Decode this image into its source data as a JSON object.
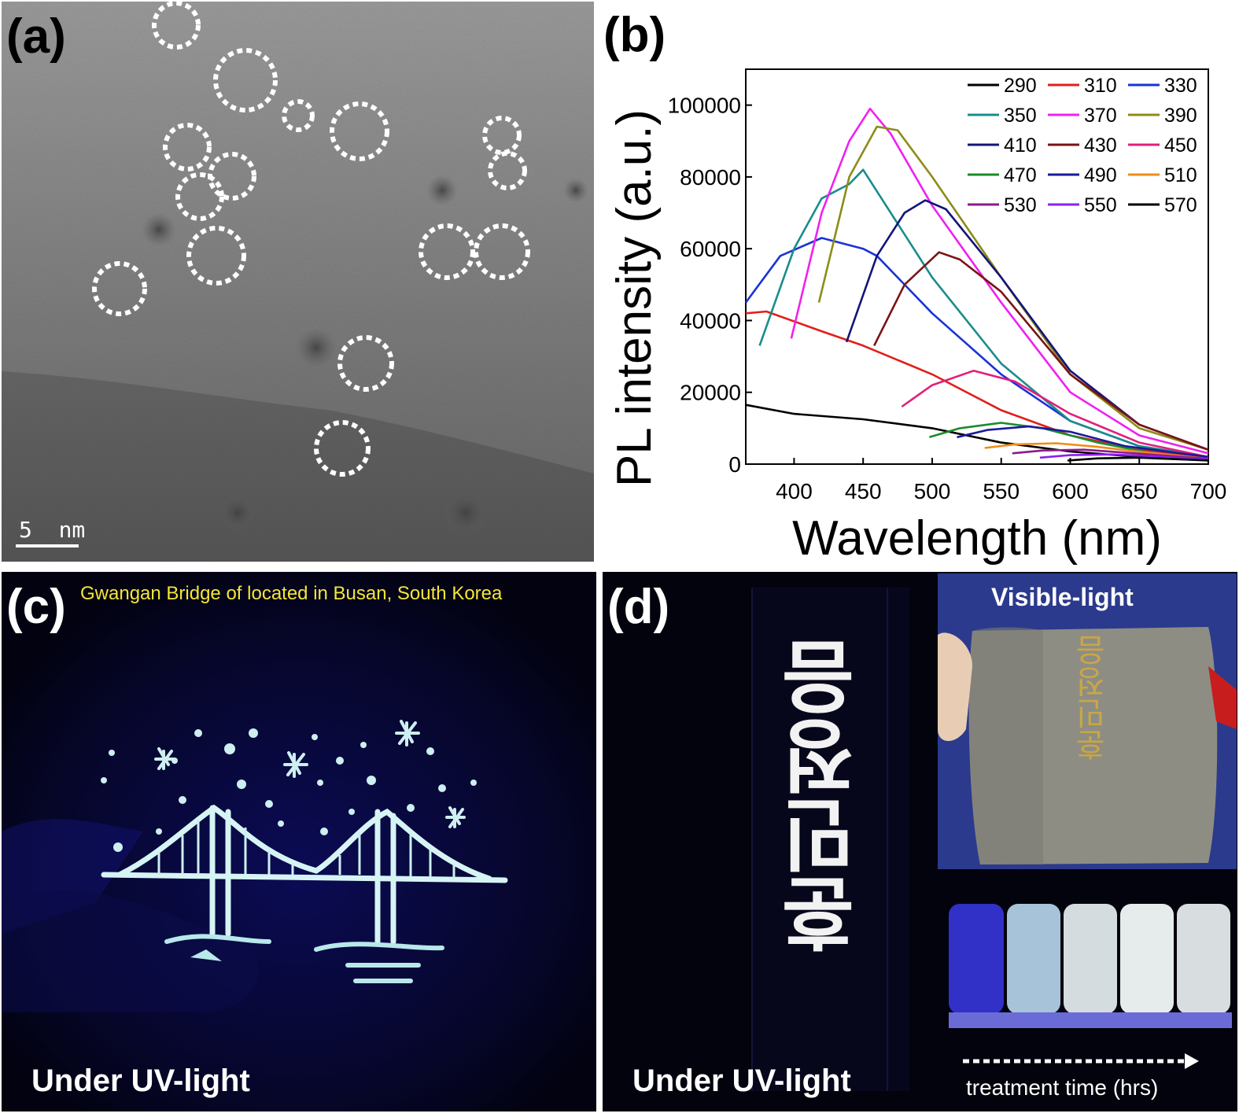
{
  "panel_a": {
    "label": "(a)",
    "scale_bar": "5  nm"
  },
  "panel_b": {
    "label": "(b)"
  },
  "panel_c": {
    "label": "(c)",
    "caption": "Gwangan Bridge of located in Busan, South Korea",
    "bottom_text": "Under UV-light"
  },
  "panel_d": {
    "label": "(d)",
    "inset_title": "Visible-light",
    "vertical_text": "훈민정음",
    "bottom_text": "Under UV-light",
    "arrow_label": "treatment time (hrs)"
  },
  "chart_data": {
    "type": "line",
    "title": "",
    "xlabel": "Wavelength (nm)",
    "ylabel": "PL intensity (a.u.)",
    "xlim": [
      365,
      700
    ],
    "ylim": [
      0,
      110000
    ],
    "xticks": [
      "400",
      "450",
      "500",
      "550",
      "600",
      "650",
      "700"
    ],
    "yticks": [
      "0",
      "20000",
      "40000",
      "60000",
      "80000",
      "100000"
    ],
    "legend_position": "top-right",
    "series": [
      {
        "name": "290",
        "color": "#000000",
        "x": [
          365,
          400,
          450,
          500,
          550,
          600,
          650,
          700
        ],
        "y": [
          16500,
          14000,
          12500,
          10000,
          6000,
          3500,
          2000,
          1200
        ]
      },
      {
        "name": "310",
        "color": "#e0201a",
        "x": [
          365,
          380,
          420,
          450,
          500,
          550,
          600,
          650,
          700
        ],
        "y": [
          42000,
          42500,
          37000,
          33000,
          25000,
          15000,
          8000,
          4000,
          2000
        ]
      },
      {
        "name": "330",
        "color": "#1a33d6",
        "x": [
          365,
          390,
          420,
          450,
          460,
          500,
          550,
          600,
          650,
          700
        ],
        "y": [
          45000,
          58000,
          63000,
          60000,
          58000,
          42000,
          25000,
          12000,
          5000,
          2000
        ]
      },
      {
        "name": "350",
        "color": "#1a8c8c",
        "x": [
          375,
          400,
          420,
          440,
          450,
          460,
          500,
          550,
          600,
          650,
          700
        ],
        "y": [
          33000,
          60000,
          74000,
          78000,
          82000,
          76000,
          52000,
          28000,
          12000,
          5000,
          2000
        ]
      },
      {
        "name": "370",
        "color": "#f020f0",
        "x": [
          398,
          420,
          440,
          455,
          470,
          500,
          550,
          600,
          650,
          700
        ],
        "y": [
          35000,
          70000,
          90000,
          99000,
          92000,
          72000,
          45000,
          20000,
          8000,
          3000
        ]
      },
      {
        "name": "390",
        "color": "#8c8c1a",
        "x": [
          418,
          440,
          460,
          475,
          500,
          550,
          600,
          650,
          700
        ],
        "y": [
          45000,
          80000,
          94000,
          93000,
          80000,
          52000,
          25000,
          10000,
          4000
        ]
      },
      {
        "name": "410",
        "color": "#14147a",
        "x": [
          438,
          460,
          480,
          495,
          510,
          550,
          600,
          650,
          700
        ],
        "y": [
          34000,
          58000,
          70000,
          73500,
          71000,
          52000,
          26000,
          11000,
          4000
        ]
      },
      {
        "name": "430",
        "color": "#7a1414",
        "x": [
          458,
          480,
          505,
          520,
          550,
          600,
          650,
          700
        ],
        "y": [
          33000,
          50000,
          59000,
          57000,
          48000,
          25000,
          11000,
          4000
        ]
      },
      {
        "name": "450",
        "color": "#e0207a",
        "x": [
          478,
          500,
          530,
          560,
          600,
          650,
          700
        ],
        "y": [
          16000,
          22000,
          26000,
          23000,
          14000,
          6000,
          2000
        ]
      },
      {
        "name": "470",
        "color": "#1a8c2a",
        "x": [
          498,
          520,
          550,
          580,
          620,
          660,
          700
        ],
        "y": [
          7500,
          10000,
          11500,
          10000,
          6000,
          3000,
          1500
        ]
      },
      {
        "name": "490",
        "color": "#1a1a9e",
        "x": [
          518,
          540,
          570,
          600,
          640,
          700
        ],
        "y": [
          7500,
          9500,
          10500,
          9000,
          5000,
          2000
        ]
      },
      {
        "name": "510",
        "color": "#f08c1a",
        "x": [
          538,
          560,
          590,
          620,
          660,
          700
        ],
        "y": [
          4500,
          5500,
          5800,
          4800,
          3000,
          1500
        ]
      },
      {
        "name": "530",
        "color": "#8c1a8c",
        "x": [
          558,
          580,
          610,
          640,
          700
        ],
        "y": [
          3000,
          3800,
          4000,
          3200,
          1500
        ]
      },
      {
        "name": "550",
        "color": "#8c20f0",
        "x": [
          578,
          600,
          630,
          660,
          700
        ],
        "y": [
          1800,
          2500,
          2700,
          2200,
          1200
        ]
      },
      {
        "name": "570",
        "color": "#000000",
        "x": [
          598,
          620,
          650,
          700
        ],
        "y": [
          1000,
          1600,
          1800,
          1000
        ]
      }
    ]
  }
}
